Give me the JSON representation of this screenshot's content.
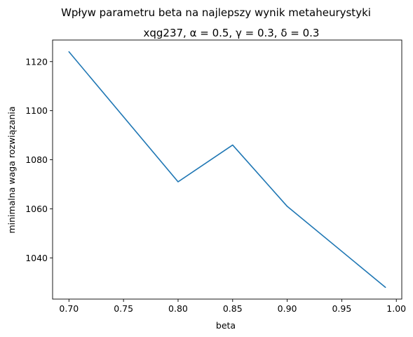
{
  "chart_data": {
    "type": "line",
    "suptitle": "Wpływ parametru beta na najlepszy wynik metaheurystyki",
    "title": "xqg237, α = 0.5, γ = 0.3, δ = 0.3",
    "xlabel": "beta",
    "ylabel": "minimalna waga rozwiązania",
    "x": [
      0.7,
      0.8,
      0.85,
      0.9,
      0.99
    ],
    "series": [
      {
        "values": [
          1124,
          1071,
          1086,
          1061,
          1028
        ],
        "color": "#1f77b4"
      }
    ],
    "xlim": [
      0.685,
      1.005
    ],
    "ylim": [
      1023.2,
      1128.8
    ],
    "xticks": [
      "0.70",
      "0.75",
      "0.80",
      "0.85",
      "0.90",
      "0.95",
      "1.00"
    ],
    "yticks": [
      "1040",
      "1060",
      "1080",
      "1100",
      "1120"
    ],
    "grid": false
  }
}
